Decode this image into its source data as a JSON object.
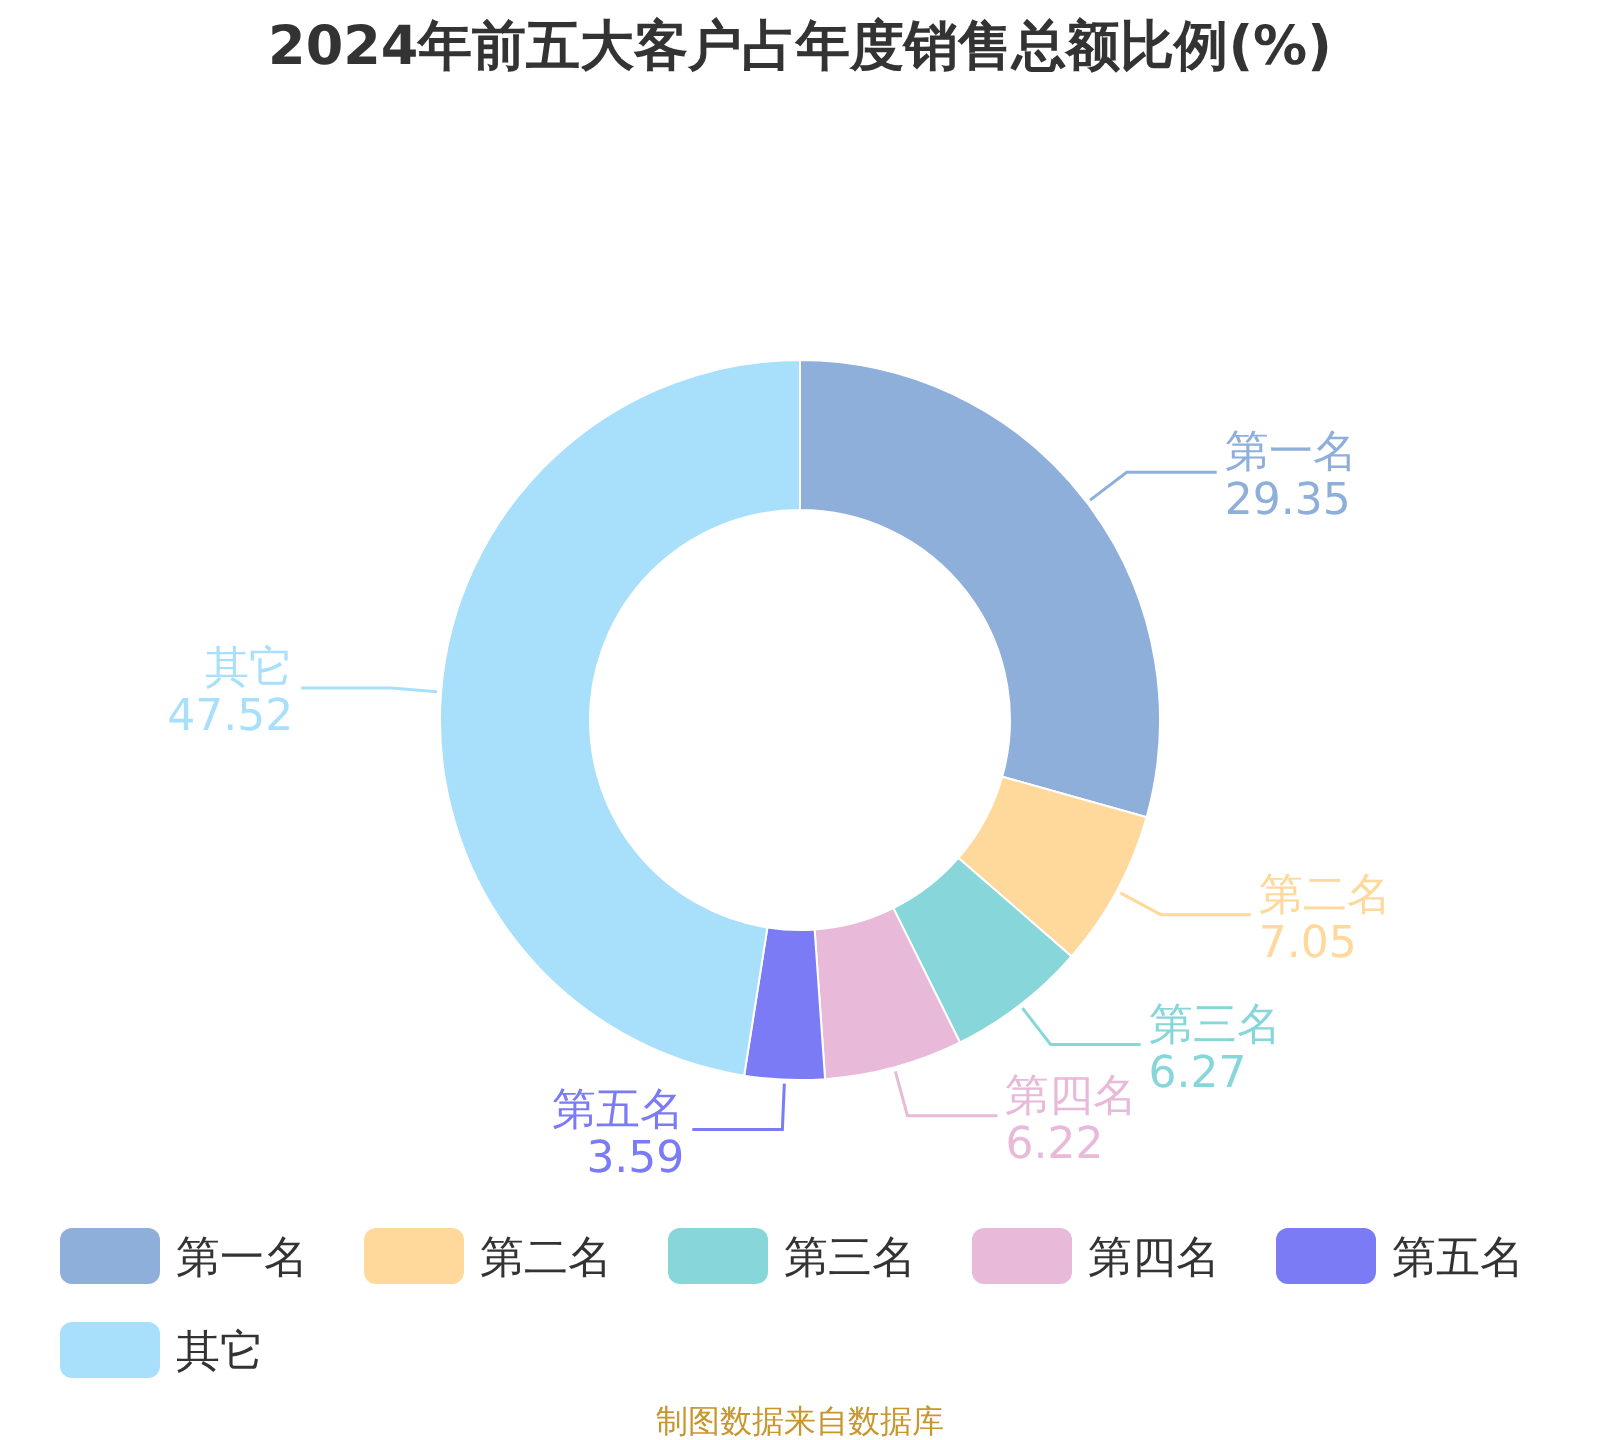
{
  "chart_data": {
    "type": "donut",
    "title": "2024年前五大客户占年度销售总额比例(%)",
    "categories": [
      "第一名",
      "第二名",
      "第三名",
      "第四名",
      "第五名",
      "其它"
    ],
    "values": [
      29.35,
      7.05,
      6.27,
      6.22,
      3.59,
      47.52
    ],
    "colors": [
      "#8fafdb",
      "#fed99b",
      "#87d6d9",
      "#e8b9d8",
      "#7b7bf5",
      "#a8dffa"
    ],
    "data_labels": true,
    "legend": "bottom",
    "annotations": [
      "制图数据来自数据库"
    ]
  }
}
